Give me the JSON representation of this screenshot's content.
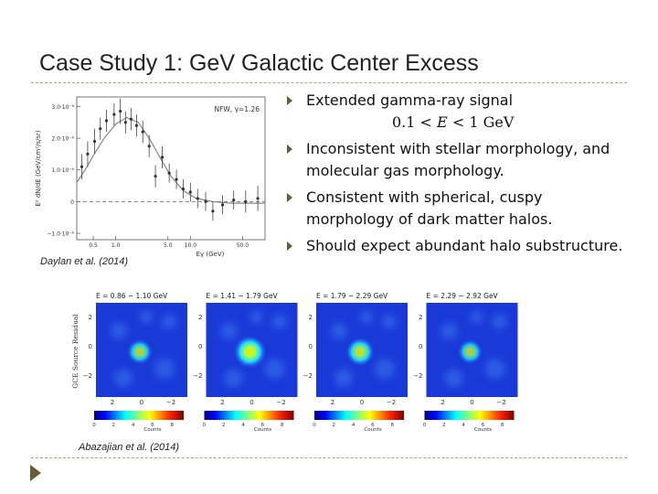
{
  "slide": {
    "title": "Case Study 1: GeV Galactic Center Excess",
    "caption_spectrum": "Daylan et al. (2014)",
    "caption_maps": "Abazajian et al. (2014)",
    "colors": {
      "accent": "#6b5a2e",
      "rule": "#b9a46a"
    }
  },
  "bullets": {
    "b1_text": "Extended gamma-ray signal",
    "b1_formula_low": "0.1",
    "b1_formula_var": "E",
    "b1_formula_high": "1 GeV",
    "b1_formula_op": "<",
    "b2_text": "Inconsistent with stellar morphology, and molecular gas morphology.",
    "b3_text": "Consistent with spherical, cuspy morphology of dark matter halos.",
    "b4_text": "Should expect abundant halo substructure."
  },
  "chart_data": [
    {
      "type": "scatter",
      "title": "",
      "annotation": "NFW,  γ=1.26",
      "xlabel": "Eγ (GeV)",
      "ylabel": "E² dN/dE (GeV/cm²/s/sr)",
      "xscale": "log",
      "xlim": [
        0.3,
        100
      ],
      "ylim": [
        -1.2e-06,
        3.3e-06
      ],
      "xticks": [
        0.5,
        1.0,
        5.0,
        10.0,
        50.0
      ],
      "xtick_labels": [
        "0.5",
        "1.0",
        "5.0",
        "10.0",
        "50.0"
      ],
      "yticks": [
        -1e-06,
        0,
        1e-06,
        2e-06,
        3e-06
      ],
      "ytick_labels": [
        "−1.0·10⁻⁶",
        "0",
        "1.0·10⁻⁶",
        "2.0·10⁻⁶",
        "3.0·10⁻⁶"
      ],
      "x": [
        0.35,
        0.42,
        0.52,
        0.62,
        0.75,
        0.95,
        1.15,
        1.35,
        1.6,
        1.9,
        2.3,
        2.8,
        3.4,
        4.2,
        5.2,
        6.5,
        8.0,
        10.0,
        12.5,
        16.0,
        20.0,
        27.0,
        38.0,
        55.0,
        80.0
      ],
      "y": [
        1.1e-06,
        1.5e-06,
        1.9e-06,
        2.3e-06,
        2.55e-06,
        2.75e-06,
        2.85e-06,
        2.5e-06,
        2.6e-06,
        2.4e-06,
        2.2e-06,
        1.75e-06,
        8e-07,
        1.4e-06,
        9e-07,
        7e-07,
        4e-07,
        3e-07,
        1e-07,
        0.0,
        -3e-07,
        -1e-07,
        5e-08,
        0.0,
        1e-07
      ],
      "yerr": [
        4e-07,
        4e-07,
        4e-07,
        3.5e-07,
        3.5e-07,
        3.5e-07,
        4e-07,
        3.5e-07,
        3.5e-07,
        3.5e-07,
        3.5e-07,
        3.5e-07,
        3.5e-07,
        3.5e-07,
        3e-07,
        3e-07,
        3e-07,
        3e-07,
        3e-07,
        3e-07,
        3e-07,
        3e-07,
        3e-07,
        3.5e-07,
        4e-07
      ],
      "model_x": [
        0.3,
        0.4,
        0.5,
        0.7,
        1.0,
        1.4,
        2.0,
        2.8,
        4.0,
        5.5,
        8.0,
        12.0,
        20.0,
        35.0,
        60.0,
        100.0
      ],
      "model_y": [
        6e-07,
        1.05e-06,
        1.45e-06,
        2e-06,
        2.45e-06,
        2.65e-06,
        2.5e-06,
        2e-06,
        1.35e-06,
        8e-07,
        3.5e-07,
        1e-07,
        0.0,
        -5e-08,
        -5e-08,
        -5e-08
      ],
      "baseline": 0
    },
    {
      "type": "heatmap",
      "ylabel": "GCE Source Residual",
      "xlabel": "Counts",
      "panels": [
        {
          "energy_label": "E = 0.86 − 1.10 GeV",
          "blob_intensity": 0.55
        },
        {
          "energy_label": "E = 1.41 − 1.79 GeV",
          "blob_intensity": 1.0
        },
        {
          "energy_label": "E = 1.79 − 2.29 GeV",
          "blob_intensity": 0.75
        },
        {
          "energy_label": "E = 2.29 − 2.92 GeV",
          "blob_intensity": 0.5
        }
      ],
      "x_tick_labels": [
        "2",
        "0",
        "−2"
      ],
      "y_tick_labels": [
        "2",
        "0",
        "−2"
      ],
      "colorbar_range": [
        0,
        8
      ],
      "colorbar_ticks": [
        "0",
        "2",
        "4",
        "6",
        "8"
      ]
    }
  ]
}
